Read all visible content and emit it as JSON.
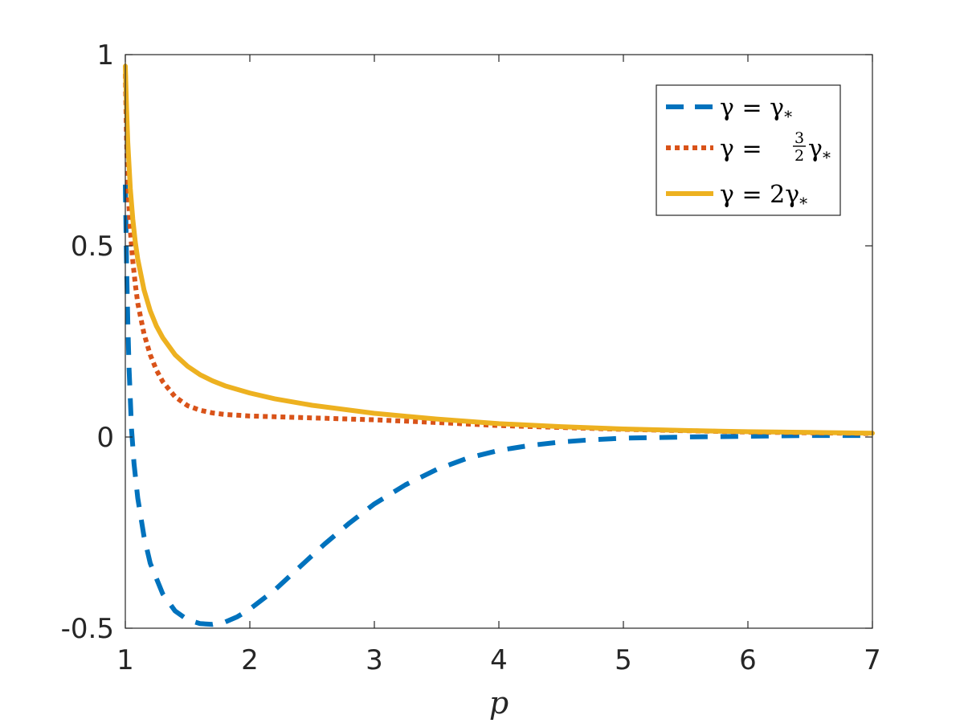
{
  "chart_data": {
    "type": "line",
    "title": "",
    "xlabel": "p",
    "ylabel": "",
    "xlim": [
      1,
      7
    ],
    "ylim": [
      -0.5,
      1
    ],
    "x_ticks": [
      1,
      2,
      3,
      4,
      5,
      6,
      7
    ],
    "y_ticks": [
      -0.5,
      0,
      0.5,
      1
    ],
    "x_tick_labels": [
      "1",
      "2",
      "3",
      "4",
      "5",
      "6",
      "7"
    ],
    "y_tick_labels": [
      "-0.5",
      "0",
      "0.5",
      "1"
    ],
    "grid": false,
    "legend_position": "top-right",
    "series": [
      {
        "name": "γ = γ*",
        "legend": {
          "pre": "γ = γ",
          "sub": "*"
        },
        "color": "#0072BD",
        "style": "dashed",
        "x": [
          1.0,
          1.01,
          1.02,
          1.03,
          1.05,
          1.07,
          1.1,
          1.15,
          1.2,
          1.3,
          1.4,
          1.5,
          1.6,
          1.7,
          1.8,
          1.9,
          2.0,
          2.2,
          2.4,
          2.6,
          2.8,
          3.0,
          3.25,
          3.5,
          3.75,
          4.0,
          4.25,
          4.5,
          4.75,
          5.0,
          5.5,
          6.0,
          6.5,
          7.0
        ],
        "y": [
          0.66,
          0.45,
          0.3,
          0.18,
          0.02,
          -0.07,
          -0.16,
          -0.26,
          -0.33,
          -0.41,
          -0.455,
          -0.478,
          -0.488,
          -0.49,
          -0.484,
          -0.47,
          -0.45,
          -0.4,
          -0.34,
          -0.28,
          -0.225,
          -0.175,
          -0.125,
          -0.085,
          -0.055,
          -0.035,
          -0.022,
          -0.013,
          -0.007,
          -0.003,
          0.0,
          0.002,
          0.004,
          0.004
        ]
      },
      {
        "name": "γ = 3/2 γ*",
        "legend": {
          "pre": "γ = ",
          "num": "3",
          "den": "2",
          "mid": "γ",
          "sub": "*"
        },
        "color": "#D95319",
        "style": "dotted",
        "x": [
          1.0,
          1.01,
          1.02,
          1.04,
          1.06,
          1.08,
          1.1,
          1.15,
          1.2,
          1.25,
          1.3,
          1.4,
          1.5,
          1.6,
          1.7,
          1.8,
          2.0,
          2.2,
          2.5,
          3.0,
          3.5,
          4.0,
          5.0,
          6.0,
          7.0
        ],
        "y": [
          0.95,
          0.78,
          0.66,
          0.54,
          0.46,
          0.4,
          0.35,
          0.27,
          0.215,
          0.175,
          0.145,
          0.105,
          0.082,
          0.07,
          0.063,
          0.059,
          0.055,
          0.053,
          0.05,
          0.045,
          0.038,
          0.03,
          0.02,
          0.013,
          0.009
        ]
      },
      {
        "name": "γ = 2γ*",
        "legend": {
          "pre": "γ = 2γ",
          "sub": "*"
        },
        "color": "#EDB120",
        "style": "solid",
        "x": [
          1.0,
          1.01,
          1.02,
          1.04,
          1.06,
          1.08,
          1.1,
          1.15,
          1.2,
          1.25,
          1.3,
          1.4,
          1.5,
          1.6,
          1.7,
          1.8,
          2.0,
          2.2,
          2.5,
          3.0,
          3.5,
          4.0,
          4.5,
          5.0,
          5.5,
          6.0,
          6.5,
          7.0
        ],
        "y": [
          0.97,
          0.86,
          0.77,
          0.65,
          0.57,
          0.51,
          0.465,
          0.385,
          0.33,
          0.29,
          0.26,
          0.215,
          0.185,
          0.163,
          0.147,
          0.134,
          0.115,
          0.1,
          0.083,
          0.062,
          0.047,
          0.035,
          0.027,
          0.021,
          0.017,
          0.014,
          0.012,
          0.01
        ]
      }
    ]
  }
}
